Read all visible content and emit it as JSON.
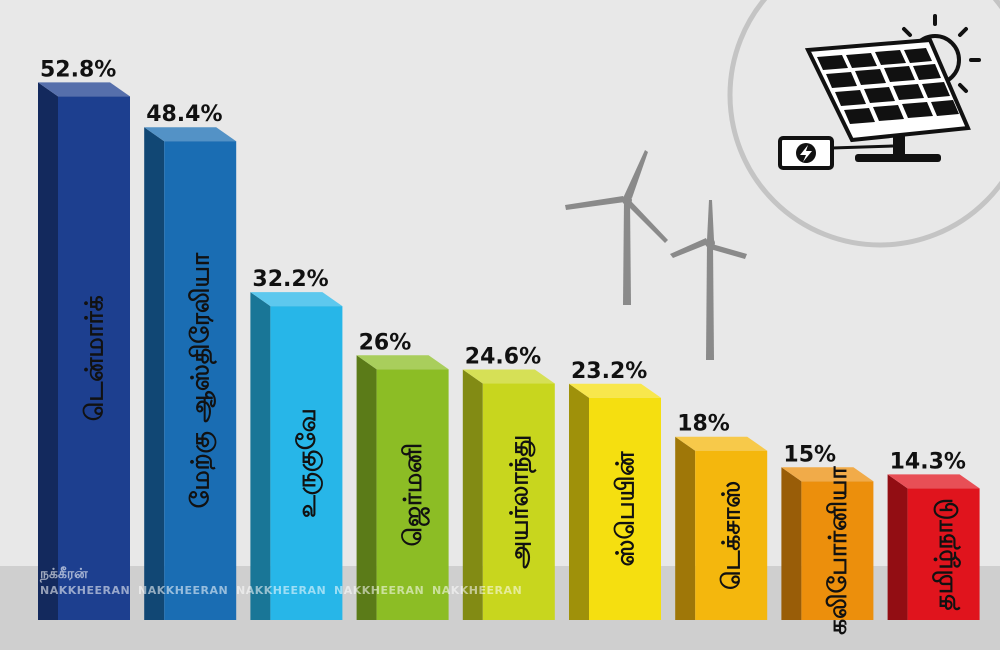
{
  "chart_data": {
    "type": "bar",
    "categories": [
      "டென்மார்க்",
      "மேற்கு ஆஸ்திரேலியா",
      "உருகுவே",
      "ஜெர்மனி",
      "அயர்லாந்து",
      "ஸ்பெயின்",
      "டெக்சாஸ்",
      "கலிபோர்னியா",
      "தமிழ்நாடு"
    ],
    "values": [
      52.8,
      48.4,
      32.2,
      26,
      24.6,
      23.2,
      18,
      15,
      14.3
    ],
    "value_labels": [
      "52.8%",
      "48.4%",
      "32.2%",
      "26%",
      "24.6%",
      "23.2%",
      "18%",
      "15%",
      "14.3%"
    ],
    "colors": [
      "#1d3f8f",
      "#1a6db3",
      "#27b6e8",
      "#8cbd25",
      "#c8d61e",
      "#f5df10",
      "#f4b70d",
      "#ec8f0c",
      "#e0141d"
    ],
    "ylim": [
      0,
      55
    ],
    "grid": false,
    "legend": "none"
  },
  "watermark": {
    "brand_tamil": "நக்கீரன்",
    "brand_latin": "NAKKHEERAN"
  },
  "icons": {
    "solar": "solar-panel-icon",
    "sun": "sun-icon",
    "battery": "battery-icon",
    "wind": "wind-turbine-icon"
  }
}
